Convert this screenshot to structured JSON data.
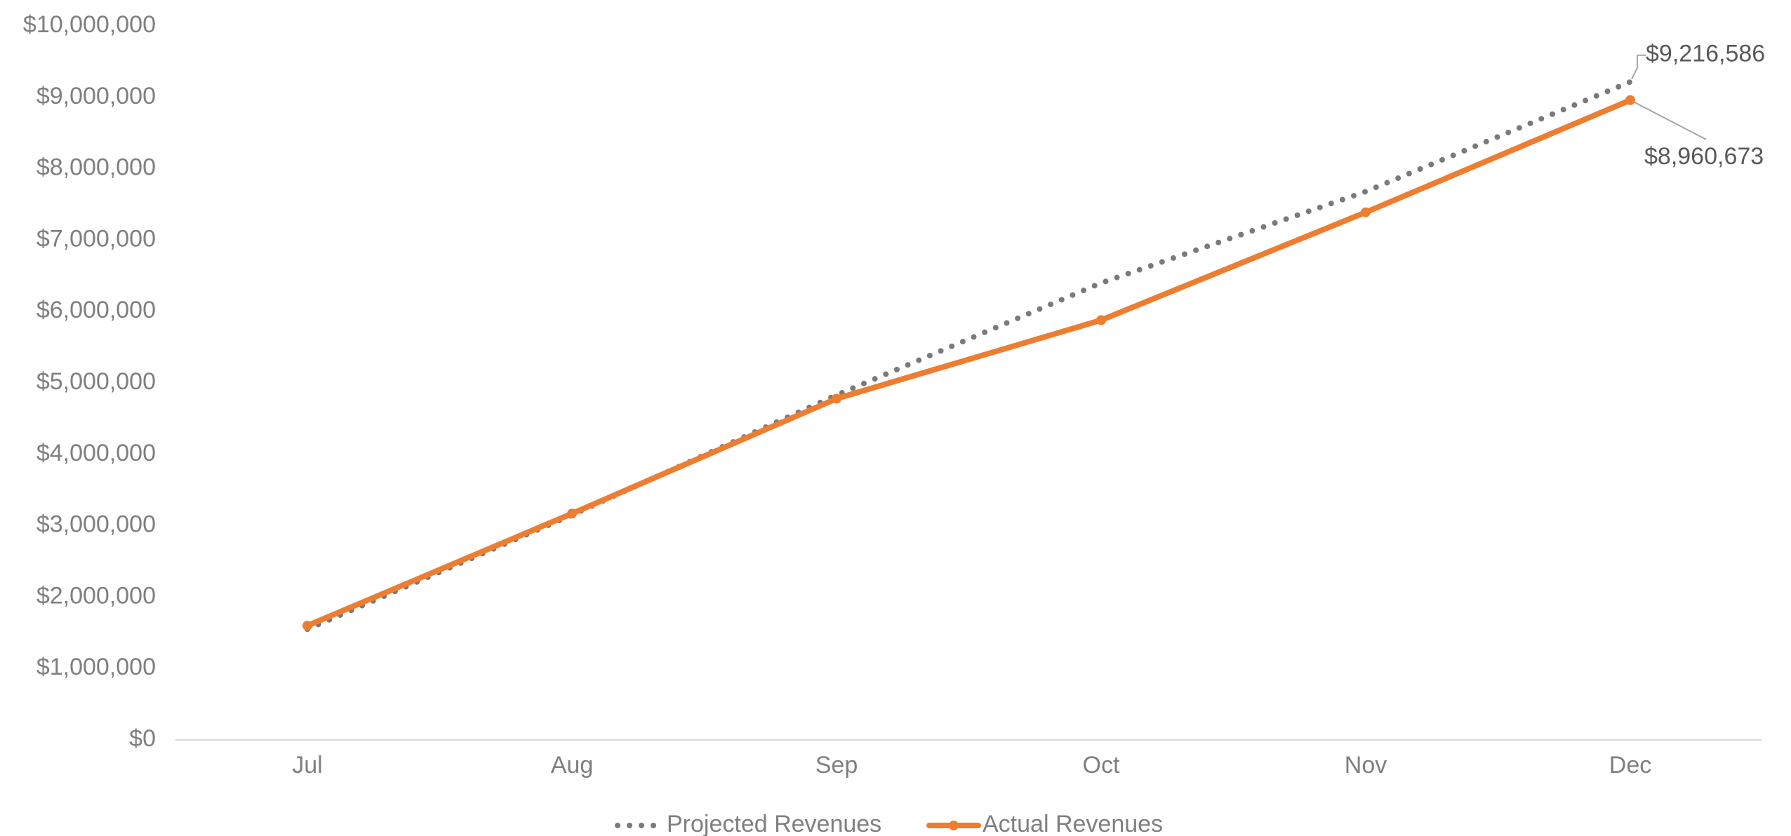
{
  "chart_data": {
    "type": "line",
    "title": "",
    "xlabel": "",
    "ylabel": "",
    "categories": [
      "Jul",
      "Aug",
      "Sep",
      "Oct",
      "Nov",
      "Dec"
    ],
    "ylim": [
      0,
      10000000
    ],
    "y_ticks": [
      0,
      1000000,
      2000000,
      3000000,
      4000000,
      5000000,
      6000000,
      7000000,
      8000000,
      9000000,
      10000000
    ],
    "y_tick_labels": [
      "$0",
      "$1,000,000",
      "$2,000,000",
      "$3,000,000",
      "$4,000,000",
      "$5,000,000",
      "$6,000,000",
      "$7,000,000",
      "$8,000,000",
      "$9,000,000",
      "$10,000,000"
    ],
    "grid": false,
    "legend": "bottom",
    "series": [
      {
        "name": "Projected Revenues",
        "style": "dotted",
        "color": "#7a7a7a",
        "values": [
          1550000,
          3150000,
          4830000,
          6400000,
          7680000,
          9216586
        ]
      },
      {
        "name": "Actual Revenues",
        "style": "solid-markers",
        "color": "#ed7d31",
        "values": [
          1600000,
          3170000,
          4780000,
          5880000,
          7390000,
          8960673
        ]
      }
    ],
    "annotations": [
      {
        "series": "Projected Revenues",
        "category": "Dec",
        "text": "$9,216,586"
      },
      {
        "series": "Actual Revenues",
        "category": "Dec",
        "text": "$8,960,673"
      }
    ]
  }
}
